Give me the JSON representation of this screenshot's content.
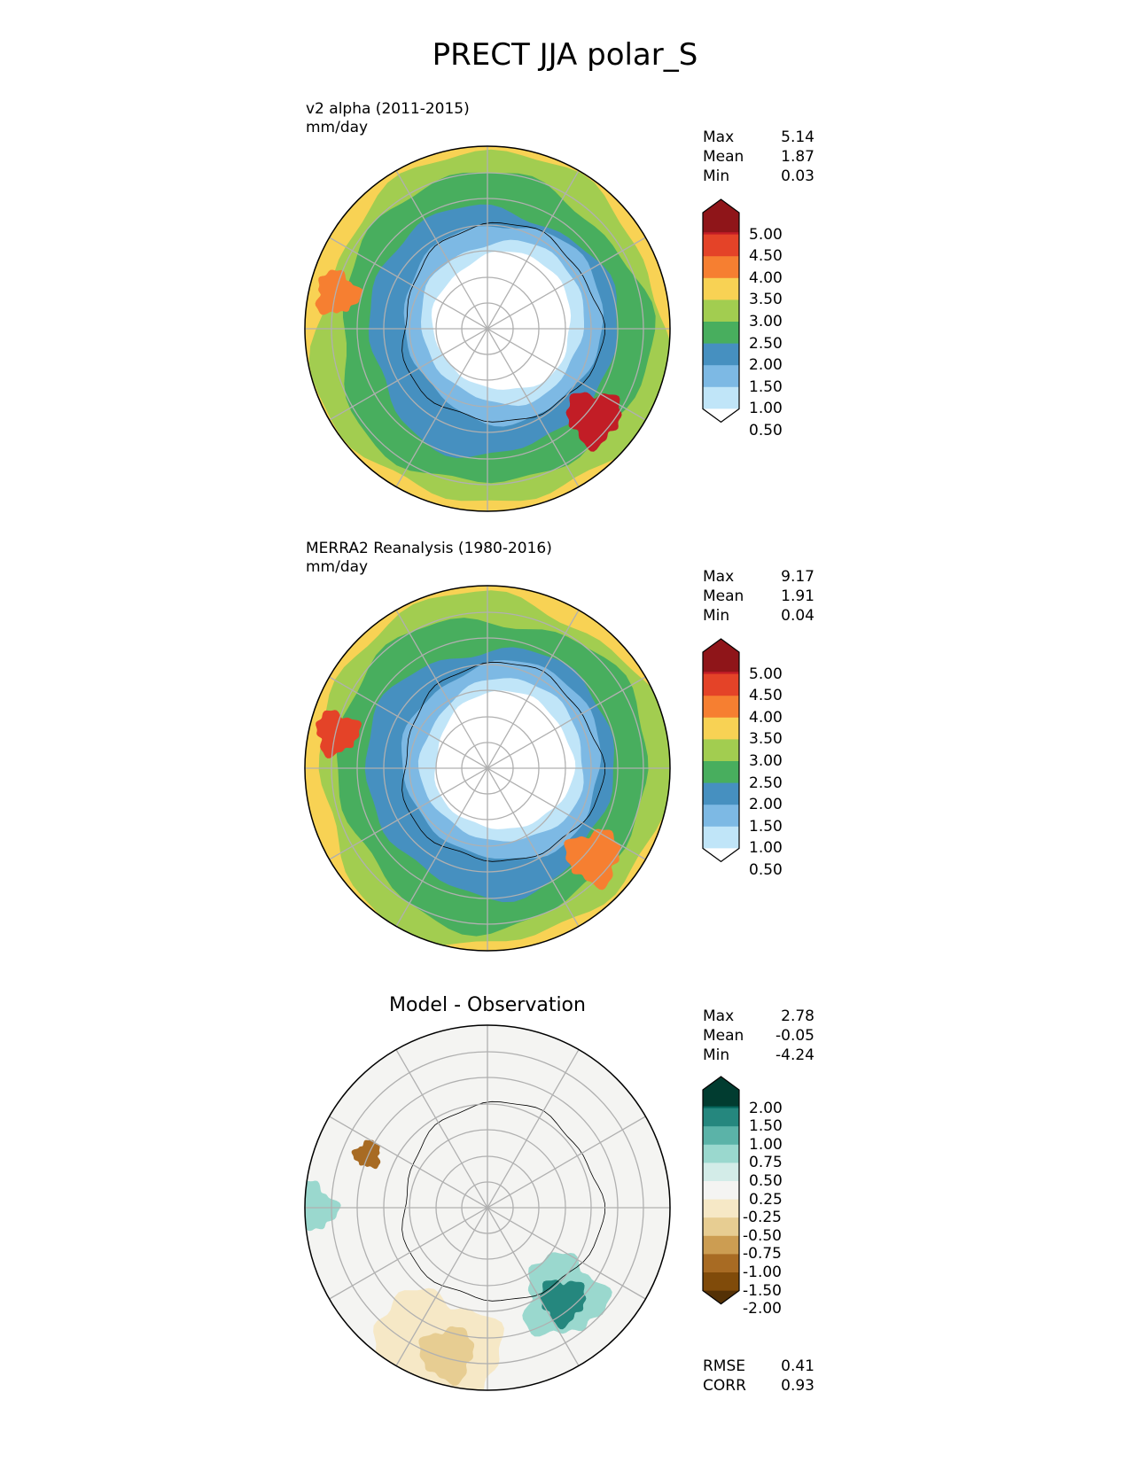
{
  "title": "PRECT JJA polar_S",
  "chart_data": {
    "type": "heatmap",
    "title": "PRECT JJA polar_S",
    "projection": "south-polar-stereographic",
    "panels": [
      {
        "id": "test",
        "title": "v2 alpha (2011-2015)",
        "units": "mm/day",
        "stats": {
          "Max": "5.14",
          "Mean": "1.87",
          "Min": "0.03"
        },
        "colorbar": {
          "levels": [
            "5.00",
            "4.50",
            "4.00",
            "3.50",
            "3.00",
            "2.50",
            "2.00",
            "1.50",
            "1.00",
            "0.50"
          ],
          "colors": [
            "#8f1519",
            "#c21d26",
            "#e44328",
            "#f67f31",
            "#f8d254",
            "#a2cd50",
            "#48ae5e",
            "#4690c0",
            "#7db9e4",
            "#c0e5f8",
            "#ffffff"
          ]
        }
      },
      {
        "id": "ref",
        "title": "MERRA2 Reanalysis (1980-2016)",
        "units": "mm/day",
        "stats": {
          "Max": "9.17",
          "Mean": "1.91",
          "Min": "0.04"
        },
        "colorbar": {
          "levels": [
            "5.00",
            "4.50",
            "4.00",
            "3.50",
            "3.00",
            "2.50",
            "2.00",
            "1.50",
            "1.00",
            "0.50"
          ],
          "colors": [
            "#8f1519",
            "#c21d26",
            "#e44328",
            "#f67f31",
            "#f8d254",
            "#a2cd50",
            "#48ae5e",
            "#4690c0",
            "#7db9e4",
            "#c0e5f8",
            "#ffffff"
          ]
        }
      },
      {
        "id": "diff",
        "title": "Model - Observation",
        "units": "",
        "stats": {
          "Max": "2.78",
          "Mean": "-0.05",
          "Min": "-4.24"
        },
        "metrics": {
          "RMSE": "0.41",
          "CORR": "0.93"
        },
        "colorbar": {
          "levels": [
            "2.00",
            "1.50",
            "1.00",
            "0.75",
            "0.50",
            "0.25",
            "-0.25",
            "-0.50",
            "-0.75",
            "-1.00",
            "-1.50",
            "-2.00"
          ],
          "colors": [
            "#013c30",
            "#03645a",
            "#25877e",
            "#5bb3a8",
            "#9ad8ce",
            "#d3ece8",
            "#f4f4f2",
            "#f6e8c6",
            "#e7cd92",
            "#cc9d52",
            "#a86b23",
            "#804b0a",
            "#543106"
          ]
        }
      }
    ]
  }
}
